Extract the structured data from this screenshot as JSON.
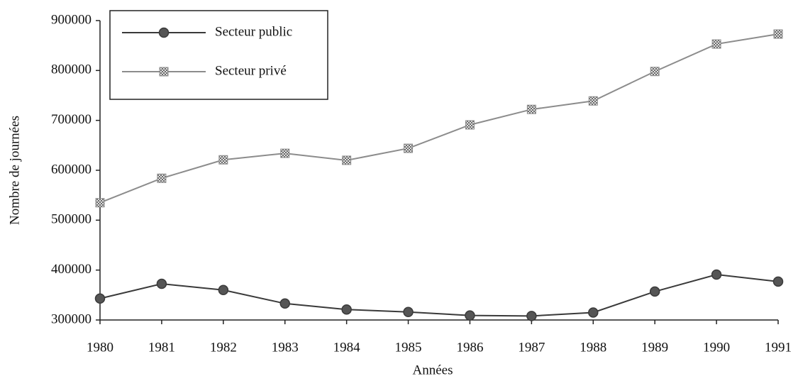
{
  "chart_data": {
    "type": "line",
    "x_label": "Années",
    "y_label": "Nombre de journées",
    "categories": [
      "1980",
      "1981",
      "1982",
      "1983",
      "1984",
      "1985",
      "1986",
      "1987",
      "1988",
      "1989",
      "1990",
      "1991"
    ],
    "series": [
      {
        "name": "Secteur public",
        "color": "#3a3a3a",
        "marker": "circle",
        "values": [
          343000,
          372500,
          360000,
          333000,
          321000,
          316000,
          309000,
          308000,
          315000,
          357000,
          391000,
          377000
        ]
      },
      {
        "name": "Secteur privé",
        "color": "#8c8c8c",
        "marker": "square",
        "values": [
          535000,
          584000,
          621000,
          634000,
          620000,
          644000,
          691000,
          722000,
          739000,
          798000,
          853000,
          873000
        ]
      }
    ],
    "ylim": [
      300000,
      900000
    ],
    "yticks": [
      300000,
      400000,
      500000,
      600000,
      700000,
      800000,
      900000
    ],
    "grid": false,
    "legend": "upper left"
  }
}
